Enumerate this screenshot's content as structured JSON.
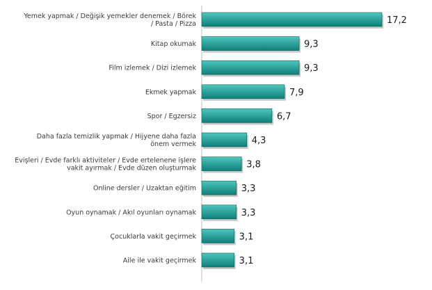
{
  "chart_data": {
    "type": "bar",
    "orientation": "horizontal",
    "categories": [
      [
        "Yemek yapmak / Değişik yemekler denemek / Börek",
        "/ Pasta / Pizza"
      ],
      [
        "Kitap okumak"
      ],
      [
        "Film izlemek / Dizi izlemek"
      ],
      [
        "Ekmek yapmak"
      ],
      [
        "Spor / Egzersiz"
      ],
      [
        "Daha fazla temizlik yapmak / Hijyene daha fazla",
        "önem vermek"
      ],
      [
        "Evişleri / Evde farklı aktiviteler / Evde ertelenene işlere",
        "vakit ayırmak / Evde düzen oluşturmak"
      ],
      [
        "Online dersler / Uzaktan eğitim"
      ],
      [
        "Oyun oynamak / Akıl oyunları oynamak"
      ],
      [
        "Çocuklarla vakit geçirmek"
      ],
      [
        "Aile ile vakit geçirmek"
      ]
    ],
    "values": [
      17.2,
      9.3,
      9.3,
      7.9,
      6.7,
      4.3,
      3.8,
      3.3,
      3.3,
      3.1,
      3.1
    ],
    "value_labels": [
      "17,2",
      "9,3",
      "9,3",
      "7,9",
      "6,7",
      "4,3",
      "3,8",
      "3,3",
      "3,3",
      "3,1",
      "3,1"
    ],
    "xlim": [
      0,
      17.2
    ],
    "grid": false,
    "legend": "none",
    "colors": {
      "bar_top": "#4fc6bd",
      "bar_bottom": "#0e7f78",
      "bar_edge": "#0b5f5a",
      "shadow": "#9a9a9a"
    }
  }
}
